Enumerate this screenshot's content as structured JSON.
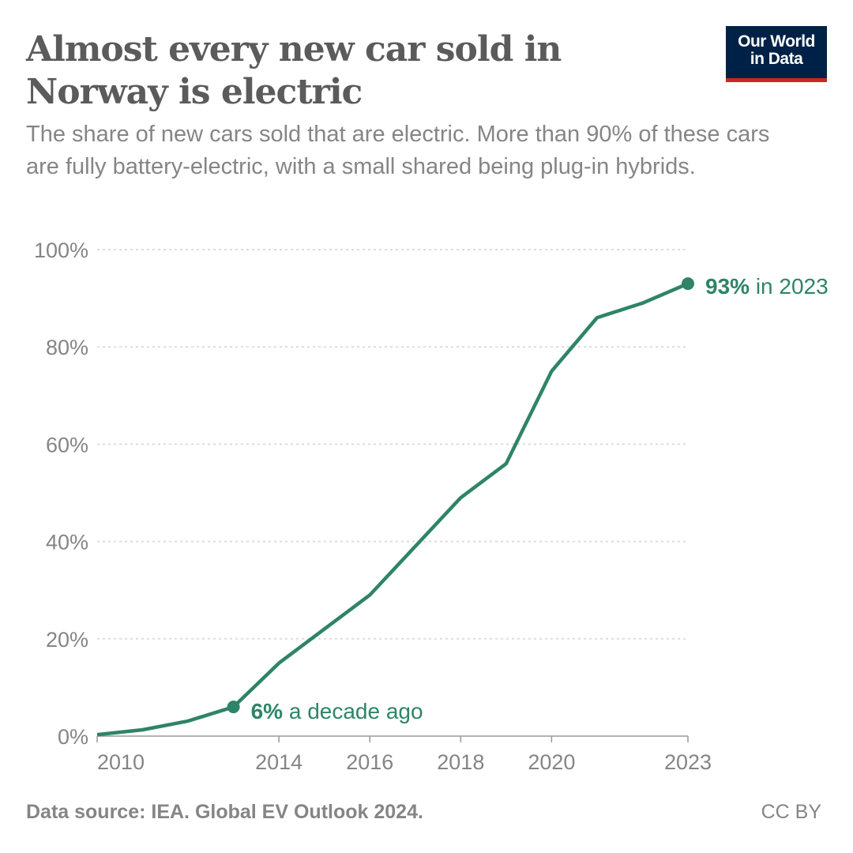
{
  "header": {
    "title": "Almost every new car sold in Norway is electric",
    "subtitle": "The share of new cars sold that are electric. More than 90% of these cars are fully battery-electric, with a small shared being plug-in hybrids.",
    "logo_line1": "Our World",
    "logo_line2": "in Data"
  },
  "footer": {
    "source": "Data source: IEA. Global EV Outlook 2024.",
    "license": "CC BY"
  },
  "colors": {
    "line": "#2e8468",
    "text": "#5b5b5b",
    "muted": "#858585",
    "grid": "#dddddd"
  },
  "chart_data": {
    "type": "line",
    "title": "Almost every new car sold in Norway is electric",
    "x": [
      2010,
      2011,
      2012,
      2013,
      2014,
      2015,
      2016,
      2017,
      2018,
      2019,
      2020,
      2021,
      2022,
      2023
    ],
    "series": [
      {
        "values": [
          0.3,
          1.3,
          3.1,
          6,
          15,
          22,
          29,
          39,
          49,
          56,
          75,
          86,
          89,
          93
        ]
      }
    ],
    "xlim": [
      2010,
      2023
    ],
    "ylim": [
      0,
      100
    ],
    "x_ticks": [
      "2010",
      "2014",
      "2016",
      "2018",
      "2020",
      "2023"
    ],
    "y_ticks": [
      "0%",
      "20%",
      "40%",
      "60%",
      "80%",
      "100%"
    ],
    "grid": "horizontal dotted",
    "annotations": [
      {
        "x": 2013,
        "bold": "6%",
        "text": " a decade ago"
      },
      {
        "x": 2023,
        "bold": "93%",
        "text": " in 2023"
      }
    ]
  }
}
